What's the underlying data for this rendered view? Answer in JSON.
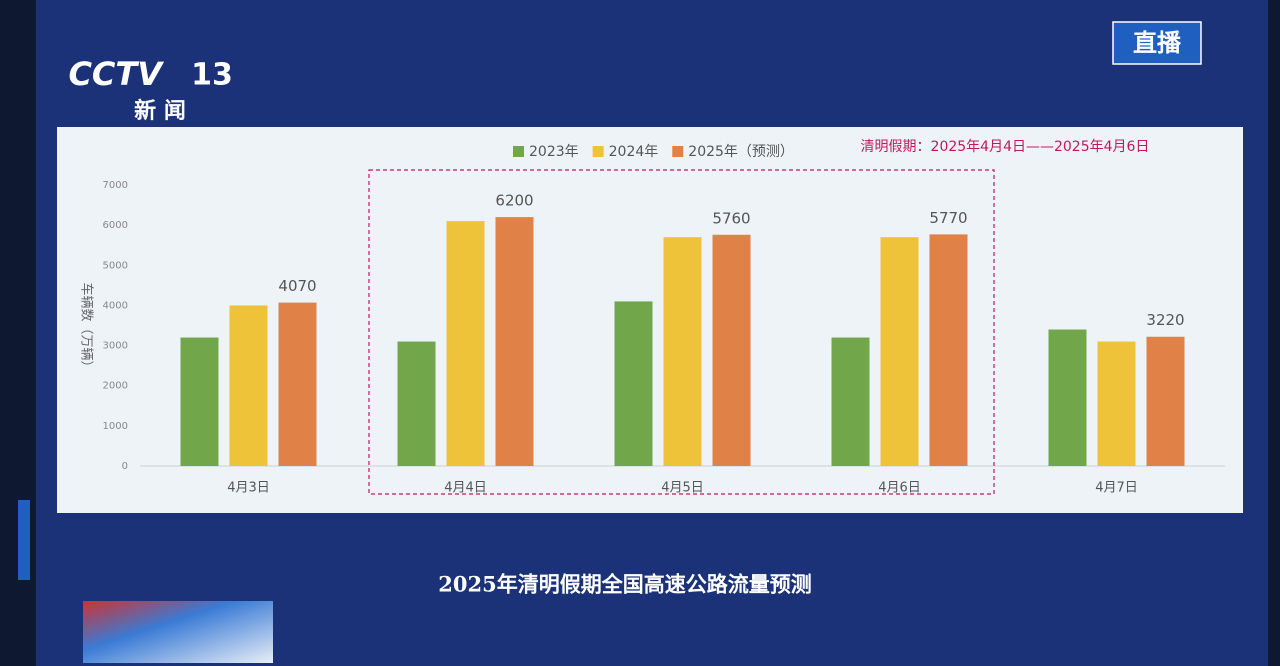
{
  "screen": {
    "channel": "CCTV",
    "channel_number": "13",
    "channel_name": "新 闻",
    "live_badge": "直播",
    "caption": "2025年清明假期全国高速公路流量预测"
  },
  "chart_data": {
    "type": "bar",
    "y_label": "车辆数（万辆）",
    "annotation": "清明假期：2025年4月4日——2025年4月6日",
    "categories": [
      "4月3日",
      "4月4日",
      "4月5日",
      "4月6日",
      "4月7日"
    ],
    "series": [
      {
        "name": "2023年",
        "color": "#72a64b",
        "values": [
          3200,
          3100,
          4100,
          3200,
          3400
        ]
      },
      {
        "name": "2024年",
        "color": "#eec33a",
        "values": [
          4000,
          6100,
          5700,
          5700,
          3100
        ]
      },
      {
        "name": "2025年（预测）",
        "color": "#e08147",
        "values": [
          4070,
          6200,
          5760,
          5770,
          3220
        ],
        "data_labels": true
      }
    ],
    "ylim": [
      0,
      7000
    ],
    "yticks": [
      0,
      1000,
      2000,
      3000,
      4000,
      5000,
      6000,
      7000
    ],
    "grid": false
  }
}
